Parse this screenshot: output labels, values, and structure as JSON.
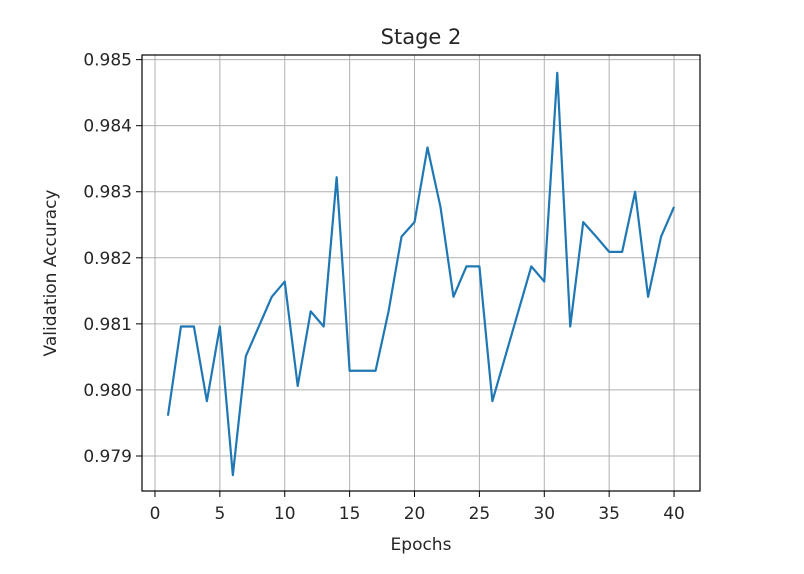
{
  "chart_data": {
    "type": "line",
    "title": "Stage 2",
    "xlabel": "Epochs",
    "ylabel": "Validation Accuracy",
    "xlim": [
      -1,
      42
    ],
    "ylim": [
      0.97847,
      0.98507
    ],
    "xticks": [
      0,
      5,
      10,
      15,
      20,
      25,
      30,
      35,
      40
    ],
    "xtick_labels": [
      "0",
      "5",
      "10",
      "15",
      "20",
      "25",
      "30",
      "35",
      "40"
    ],
    "yticks": [
      0.979,
      0.98,
      0.981,
      0.982,
      0.983,
      0.984,
      0.985
    ],
    "ytick_labels": [
      "0.979",
      "0.980",
      "0.981",
      "0.982",
      "0.983",
      "0.984",
      "0.985"
    ],
    "grid": true,
    "series": [
      {
        "color": "#1f77b4",
        "x": [
          1,
          2,
          3,
          4,
          5,
          6,
          7,
          8,
          9,
          10,
          11,
          12,
          13,
          14,
          15,
          16,
          17,
          18,
          19,
          20,
          21,
          22,
          23,
          24,
          25,
          26,
          27,
          28,
          29,
          30,
          31,
          32,
          33,
          34,
          35,
          36,
          37,
          38,
          39,
          40
        ],
        "values": [
          0.97961,
          0.98096,
          0.98096,
          0.97983,
          0.98096,
          0.97871,
          0.98051,
          0.98096,
          0.98141,
          0.98164,
          0.98006,
          0.98119,
          0.98096,
          0.98322,
          0.98029,
          0.98029,
          0.98029,
          0.98119,
          0.98232,
          0.98254,
          0.98367,
          0.98277,
          0.98141,
          0.98187,
          0.98187,
          0.97983,
          0.98051,
          0.98119,
          0.98187,
          0.98164,
          0.9848,
          0.98096,
          0.98254,
          0.98232,
          0.98209,
          0.98209,
          0.983,
          0.98141,
          0.98232,
          0.98277
        ]
      }
    ]
  }
}
